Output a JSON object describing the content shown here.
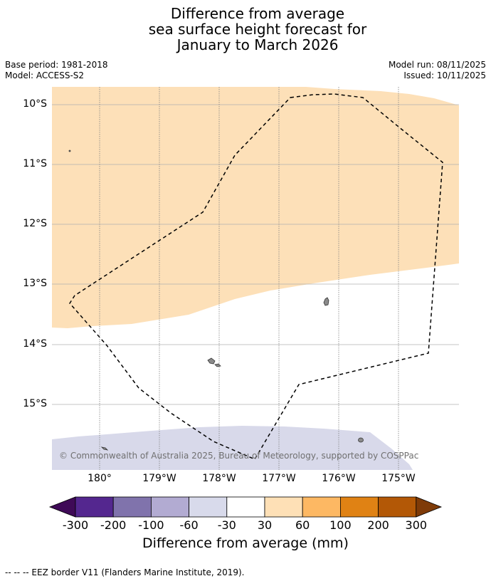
{
  "title": {
    "line1": "Difference from average",
    "line2": "sea surface height forecast for",
    "line3": "January to March 2026"
  },
  "meta": {
    "base_period": "Base period: 1981-2018",
    "model": "Model: ACCESS-S2",
    "model_run": "Model run: 08/11/2025",
    "issued": "Issued: 10/11/2025"
  },
  "map": {
    "lat_labels": [
      "10°S",
      "11°S",
      "12°S",
      "13°S",
      "14°S",
      "15°S"
    ],
    "lon_labels": [
      "180°",
      "179°W",
      "178°W",
      "177°W",
      "176°W",
      "175°W"
    ],
    "copyright": "© Commonwealth of Australia 2025, Bureau of Meteorology, supported by COSPPac",
    "colors": {
      "positive_30_60": "#fde0b8",
      "negative_60_30": "#d8d9ea",
      "land": "#8a8a8a",
      "eez": "#000000"
    }
  },
  "colorbar": {
    "ticks": [
      "-300",
      "-200",
      "-100",
      "-60",
      "-30",
      "30",
      "60",
      "100",
      "200",
      "300"
    ],
    "colors": [
      "#3f0a57",
      "#54278f",
      "#8073ac",
      "#b2abd2",
      "#d8daeb",
      "#ffffff",
      "#fee0b6",
      "#fdb863",
      "#e08214",
      "#b35806",
      "#7f3b08"
    ],
    "label": "Difference from average (mm)"
  },
  "legend": {
    "text": "--  --  -- EEZ border V11 (Flanders Marine Institute, 2019)."
  }
}
